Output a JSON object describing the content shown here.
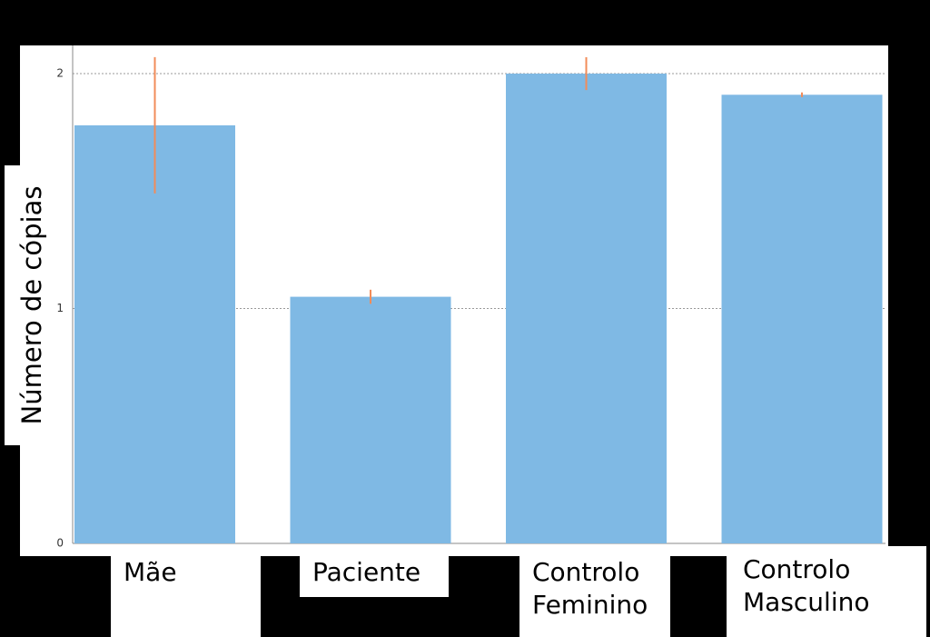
{
  "chart_data": {
    "type": "bar",
    "y_label": "Número de cópias",
    "categories": [
      "Mãe",
      "Paciente",
      "Controlo Feminino",
      "Controlo Masculino"
    ],
    "values": [
      1.78,
      1.05,
      2.0,
      1.91
    ],
    "errors": [
      0.29,
      0.03,
      0.07,
      0.01
    ],
    "color": "#7fb9e4",
    "error_color": "#f28c5a",
    "ylim": [
      0,
      2.12
    ],
    "yticks": [
      0,
      1,
      2
    ],
    "grid": true
  }
}
